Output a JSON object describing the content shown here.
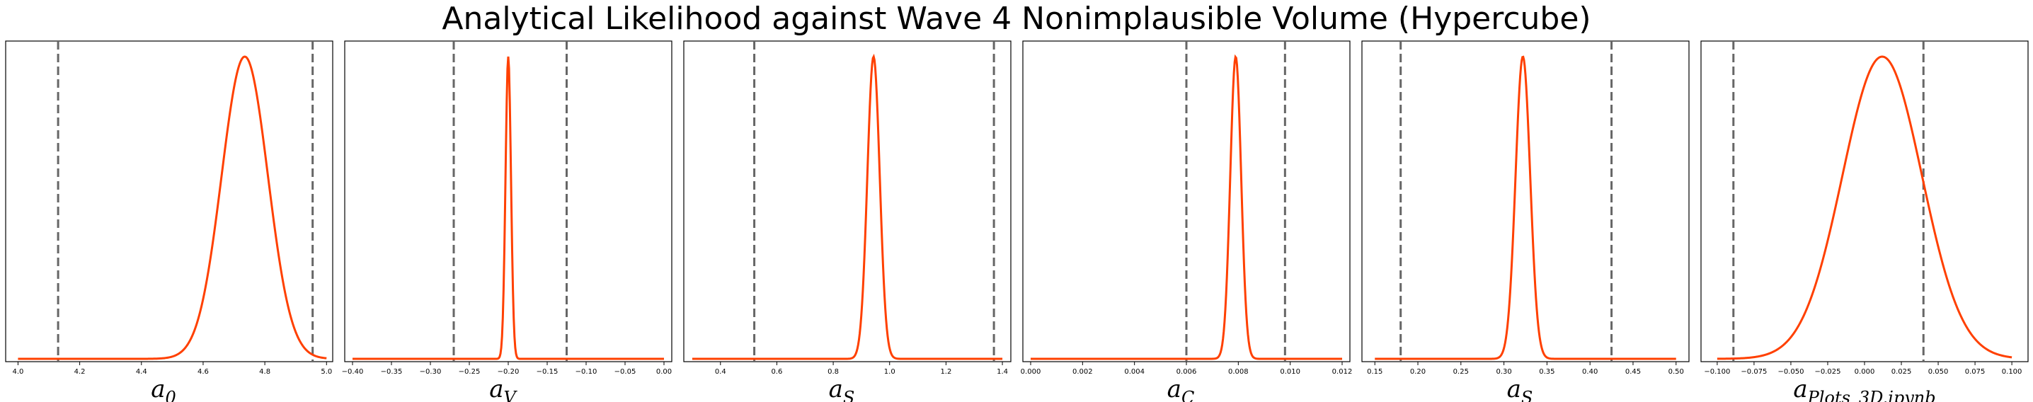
{
  "title": "Analytical Likelihood against Wave 4 Nonimplausible Volume (Hypercube)",
  "colors": {
    "curve": "#ff4000",
    "bound": "#666666",
    "frame": "#000000"
  },
  "chart_data": [
    {
      "type": "line",
      "xlabel_main": "a",
      "xlabel_sub": "0",
      "xlim": [
        3.96,
        5.02
      ],
      "ticks": [
        4.0,
        4.2,
        4.4,
        4.6,
        4.8,
        5.0
      ],
      "tick_labels": [
        "4.0",
        "4.2",
        "4.4",
        "4.6",
        "4.8",
        "5.0"
      ],
      "gaussian": {
        "mean": 4.735,
        "sd": 0.075,
        "x_min": 4.0,
        "x_max": 5.0
      },
      "bounds": [
        4.13,
        4.955
      ],
      "grid": false
    },
    {
      "type": "line",
      "xlabel_main": "a",
      "xlabel_sub": "V",
      "xlim": [
        -0.41,
        0.01
      ],
      "ticks": [
        -0.4,
        -0.35,
        -0.3,
        -0.25,
        -0.2,
        -0.15,
        -0.1,
        -0.05,
        0.0
      ],
      "tick_labels": [
        "-0.40",
        "-0.35",
        "-0.30",
        "-0.25",
        "-0.20",
        "-0.15",
        "-0.10",
        "-0.05",
        "0.00"
      ],
      "gaussian": {
        "mean": -0.2,
        "sd": 0.0035,
        "x_min": -0.4,
        "x_max": 0.0
      },
      "bounds": [
        -0.27,
        -0.125
      ],
      "grid": false
    },
    {
      "type": "line",
      "xlabel_main": "a",
      "xlabel_sub": "S",
      "xlim": [
        0.27,
        1.43
      ],
      "ticks": [
        0.4,
        0.6,
        0.8,
        1.0,
        1.2,
        1.4
      ],
      "tick_labels": [
        "0.4",
        "0.6",
        "0.8",
        "1.0",
        "1.2",
        "1.4"
      ],
      "gaussian": {
        "mean": 0.943,
        "sd": 0.022,
        "x_min": 0.3,
        "x_max": 1.4
      },
      "bounds": [
        0.52,
        1.37
      ],
      "grid": false
    },
    {
      "type": "line",
      "xlabel_main": "a",
      "xlabel_sub": "C",
      "xlim": [
        -0.0003,
        0.0123
      ],
      "ticks": [
        0.0,
        0.002,
        0.004,
        0.006,
        0.008,
        0.01,
        0.012
      ],
      "tick_labels": [
        "0.000",
        "0.002",
        "0.004",
        "0.006",
        "0.008",
        "0.010",
        "0.012"
      ],
      "gaussian": {
        "mean": 0.0079,
        "sd": 0.00021,
        "x_min": 0.0,
        "x_max": 0.012
      },
      "bounds": [
        0.006,
        0.0098
      ],
      "grid": false
    },
    {
      "type": "line",
      "xlabel_main": "a",
      "xlabel_sub": "S",
      "xlim": [
        0.135,
        0.515
      ],
      "ticks": [
        0.15,
        0.2,
        0.25,
        0.3,
        0.35,
        0.4,
        0.45,
        0.5
      ],
      "tick_labels": [
        "0.15",
        "0.20",
        "0.25",
        "0.30",
        "0.35",
        "0.40",
        "0.45",
        "0.50"
      ],
      "gaussian": {
        "mean": 0.322,
        "sd": 0.0085,
        "x_min": 0.15,
        "x_max": 0.5
      },
      "bounds": [
        0.18,
        0.425
      ],
      "grid": false
    },
    {
      "type": "line",
      "xlabel_main": "a",
      "xlabel_sub": "Plots_3D.ipynb",
      "xlim": [
        -0.111,
        0.111
      ],
      "ticks": [
        -0.1,
        -0.075,
        -0.05,
        -0.025,
        0.0,
        0.025,
        0.05,
        0.075,
        0.1
      ],
      "tick_labels": [
        "-0.100",
        "-0.075",
        "-0.050",
        "-0.025",
        "0.000",
        "0.025",
        "0.050",
        "0.075",
        "0.100"
      ],
      "gaussian": {
        "mean": 0.012,
        "sd": 0.027,
        "x_min": -0.1,
        "x_max": 0.1
      },
      "bounds": [
        -0.089,
        0.04
      ],
      "grid": false
    }
  ]
}
